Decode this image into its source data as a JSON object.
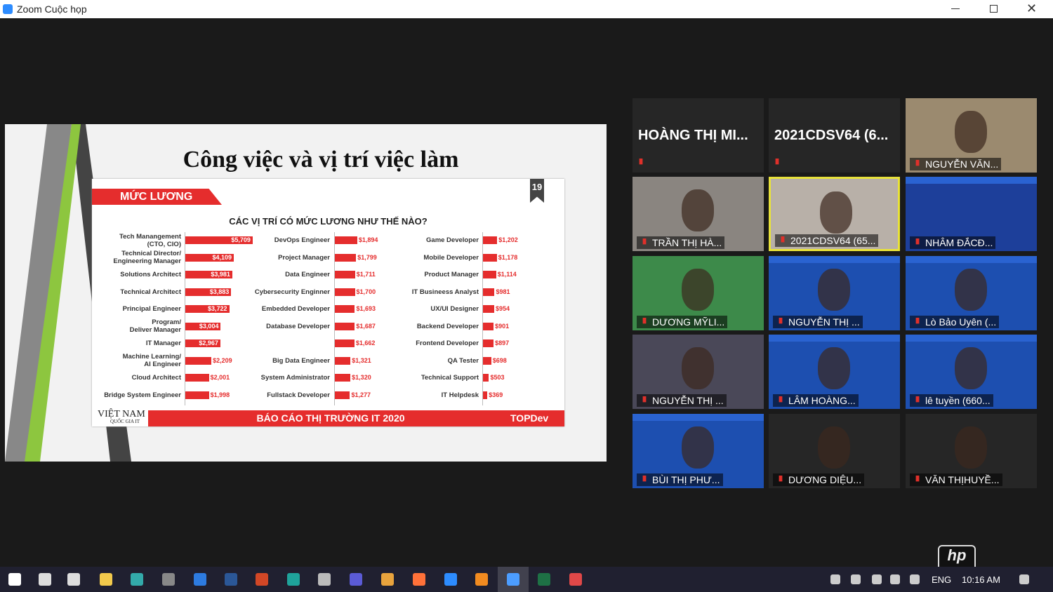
{
  "window": {
    "title": "Zoom Cuộc họp"
  },
  "slide": {
    "title": "Công việc và vị trí việc làm",
    "section": "MỨC LƯƠNG",
    "page_number": "19",
    "subtitle": "CÁC VỊ TRÍ CÓ MỨC LƯƠNG NHƯ THẾ NÀO?",
    "footer_brand": "VIỆT NAM",
    "footer_brand_sub": "QUỐC GIA IT",
    "footer_center": "BÁO CÁO THỊ TRƯỜNG IT 2020",
    "footer_right": "TOPDev"
  },
  "chart_data": [
    {
      "type": "bar",
      "color": "#e52d2d",
      "categories": [
        "Tech Manangement\n(CTO, CIO)",
        "Technical Director/\nEngineering Manager",
        "Solutions Architect",
        "Technical Architect",
        "Principal Engineer",
        "Program/\nDeliver Manager",
        "IT Manager",
        "Machine Learning/\nAI Engineer",
        "Cloud Architect",
        "Bridge System Engineer"
      ],
      "values": [
        5709,
        4109,
        3981,
        3883,
        3722,
        3004,
        2967,
        2209,
        2001,
        1998
      ],
      "value_labels": [
        "$5,709",
        "$4,109",
        "$3,981",
        "$3,883",
        "$3,722",
        "$3,004",
        "$2,967",
        "$2,209",
        "$2,001",
        "$1,998"
      ]
    },
    {
      "type": "bar",
      "color": "#e52d2d",
      "categories": [
        "DevOps Engineer",
        "Project Manager",
        "Data Engineer",
        "Cybersecurity Enginner",
        "Embedded Developer",
        "Database Developer",
        null,
        "Big Data Engineer",
        "System Administrator",
        "Fullstack Developer"
      ],
      "values": [
        1894,
        1799,
        1711,
        1700,
        1693,
        1687,
        1662,
        1321,
        1320,
        1277
      ],
      "value_labels": [
        "$1,894",
        "$1,799",
        "$1,711",
        "$1,700",
        "$1,693",
        "$1,687",
        "$1,662",
        "$1,321",
        "$1,320",
        "$1,277"
      ]
    },
    {
      "type": "bar",
      "color": "#e52d2d",
      "categories": [
        "Game Developer",
        "Mobile Developer",
        "Product Manager",
        "IT Busineess Analyst",
        "UX/UI Designer",
        "Backend Developer",
        "Frontend Developer",
        "QA Tester",
        "Technical Support",
        "IT Helpdesk"
      ],
      "values": [
        1202,
        1178,
        1114,
        981,
        954,
        901,
        897,
        698,
        503,
        369
      ],
      "value_labels": [
        "$1,202",
        "$1,178",
        "$1,114",
        "$981",
        "$954",
        "$901",
        "$897",
        "$698",
        "$503",
        "$369"
      ]
    }
  ],
  "participants": [
    "HOÀNG THỊ MI...",
    "2021CDSV64 (6...",
    "NGUYỄN VĂN...",
    "TRẦN THỊ HÀ...",
    "2021CDSV64 (65...",
    "NHÂM ĐẮCĐ...",
    "DƯƠNG MỸLI...",
    "NGUYỄN THỊ ...",
    "Lò Bảo Uyên (...",
    "NGUYỄN THỊ ...",
    "LÂM HOÀNG...",
    "lê tuyền (660...",
    "BÙI THỊ PHƯ...",
    "DƯƠNG DIỆU...",
    "VĂN THỊHUYỀ..."
  ],
  "taskbar": {
    "language": "ENG",
    "time": "10:16 AM"
  }
}
